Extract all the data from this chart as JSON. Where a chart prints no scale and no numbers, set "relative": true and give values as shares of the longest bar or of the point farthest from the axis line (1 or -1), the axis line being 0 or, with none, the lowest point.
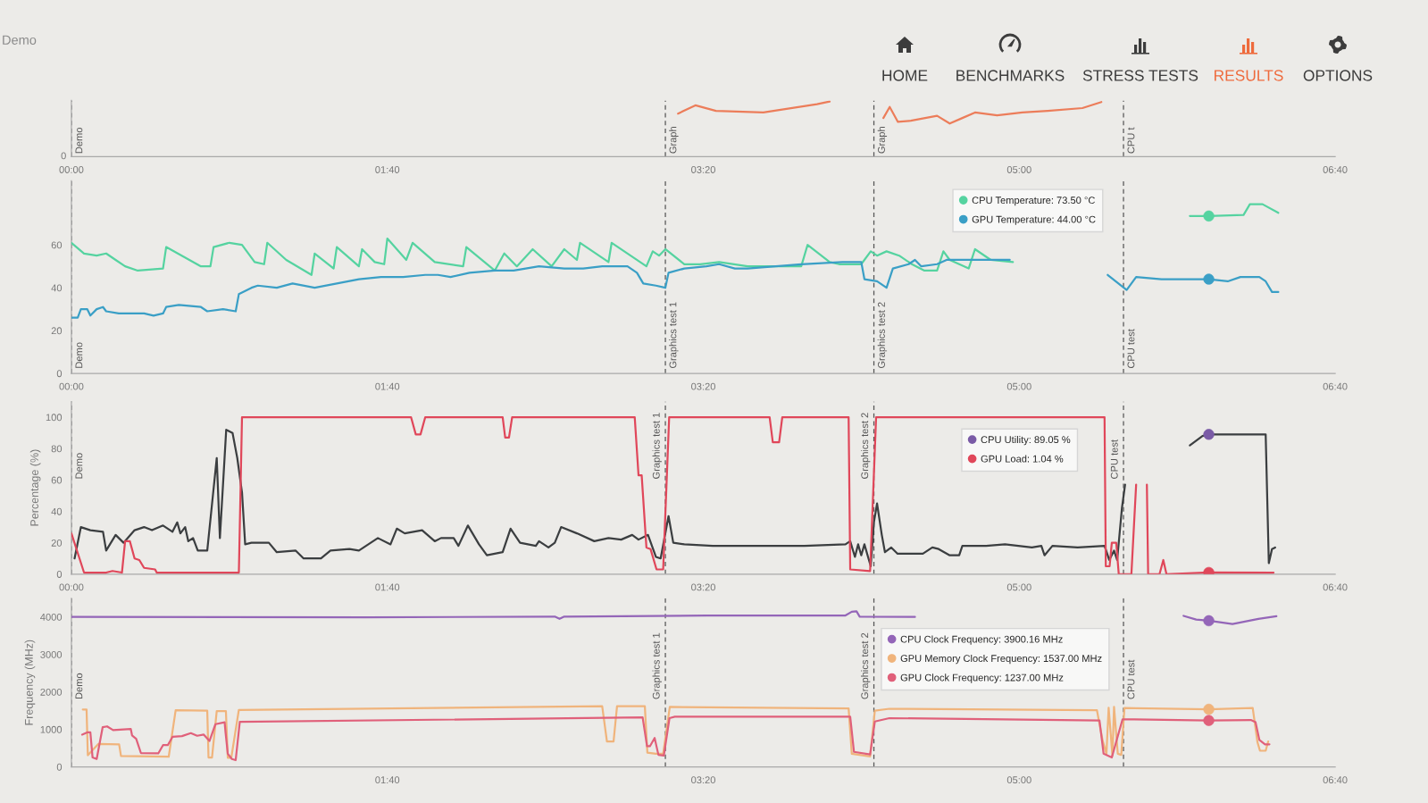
{
  "chart_data": [
    {
      "type": "other",
      "annotations": [
        "Demo",
        "HOME",
        "BENCHMARKS",
        "STRESS TESTS",
        "RESULTS",
        "OPTIONS"
      ],
      "colors": [
        "#8a8a8a",
        "#3c3c3c",
        "#3c3c3c",
        "#3c3c3c",
        "#ee6a3c",
        "#3c3c3c"
      ]
    },
    {
      "type": "line",
      "relative": true,
      "xlim": [
        0,
        400
      ],
      "xticks": [
        {
          "value": 0,
          "label": "00:00"
        },
        {
          "value": 100,
          "label": "01:40"
        },
        {
          "value": 200,
          "label": "03:20"
        },
        {
          "value": 300,
          "label": "05:00"
        },
        {
          "value": 400,
          "label": "06:40"
        }
      ],
      "series": [
        {
          "color": "#ec7d5a",
          "x": [
            192,
            197.5,
            204,
            219,
            236,
            240,
            248,
            257,
            259,
            261.6,
            265.7,
            274,
            278,
            282,
            286,
            293,
            301,
            309,
            320,
            326
          ],
          "values": [
            0.78,
            0.93,
            0.83,
            0.8,
            0.95,
            1,
            null,
            0.7,
            0.9,
            0.63,
            0.65,
            0.74,
            0.6,
            0.7,
            0.8,
            0.75,
            0.8,
            0.83,
            0.88,
            0.99
          ]
        }
      ],
      "ref_lines": [
        {
          "axis": "x",
          "value": 0,
          "label": "Demo",
          "line_style": "dashed",
          "color": "#555555"
        },
        {
          "axis": "x",
          "value": 188,
          "label": "Graph",
          "line_style": "dashed",
          "color": "#555555"
        },
        {
          "axis": "x",
          "value": 254,
          "label": "Graph",
          "line_style": "dashed",
          "color": "#555555"
        },
        {
          "axis": "x",
          "value": 333,
          "label": "CPU t",
          "line_style": "dashed",
          "color": "#555555"
        }
      ],
      "annotations": [
        "0"
      ]
    },
    {
      "type": "line",
      "xlim": [
        0,
        400
      ],
      "xticks": [
        {
          "value": 0,
          "label": "00:00"
        },
        {
          "value": 100,
          "label": "01:40"
        },
        {
          "value": 200,
          "label": "03:20"
        },
        {
          "value": 300,
          "label": "05:00"
        },
        {
          "value": 400,
          "label": "06:40"
        }
      ],
      "ylim": [
        0,
        90
      ],
      "yticks": [
        0,
        20,
        40,
        60
      ],
      "legend": "top right",
      "series": [
        {
          "color": "#55d3a0",
          "x": [
            0,
            4,
            8,
            11,
            14,
            17,
            21,
            29,
            30,
            41,
            44,
            45,
            50,
            54,
            58,
            61,
            62,
            68,
            76,
            77,
            83,
            84,
            91,
            92,
            96,
            99,
            100,
            106,
            108,
            115,
            124,
            125,
            134,
            137,
            141,
            146,
            152,
            156,
            160,
            161,
            170,
            171,
            182,
            184,
            186,
            188,
            194,
            199,
            205,
            214,
            231,
            233,
            240,
            243,
            250,
            253,
            255,
            258,
            262,
            266,
            270,
            274,
            276,
            278,
            284,
            286,
            291,
            298,
            326,
            354,
            360,
            371,
            373,
            377,
            382
          ],
          "values": [
            61,
            56,
            55,
            56,
            53,
            50,
            48,
            49,
            59,
            50,
            50,
            59,
            61,
            60,
            52,
            51,
            61,
            53,
            46,
            56,
            49,
            59,
            50,
            58,
            52,
            51,
            63,
            53,
            61,
            52,
            50,
            59,
            48,
            56,
            50,
            58,
            50,
            58,
            53,
            61,
            52,
            61,
            50,
            57,
            55,
            58,
            51,
            51,
            52,
            50,
            50,
            60,
            52,
            51,
            51,
            57,
            55,
            57,
            55,
            51,
            48,
            48,
            57,
            53,
            49,
            58,
            53,
            52,
            null,
            73.5,
            73.5,
            74,
            79,
            79,
            75
          ]
        },
        {
          "color": "#3a9fc6",
          "x": [
            0,
            2,
            3,
            5,
            6,
            8,
            10,
            11,
            15,
            23,
            26,
            29,
            30,
            34,
            41,
            43,
            48,
            52,
            53,
            57,
            59,
            65,
            70,
            77,
            84,
            91,
            98,
            105,
            112,
            116,
            120,
            126,
            134,
            140,
            148,
            156,
            162,
            168,
            176,
            179,
            181,
            185,
            188,
            189,
            194,
            201,
            205,
            210,
            214,
            231,
            244,
            250,
            251,
            255,
            258,
            260,
            265,
            267,
            269,
            274,
            277,
            282,
            286,
            294,
            297,
            312,
            328,
            334,
            337,
            345,
            360,
            366,
            370,
            376,
            378,
            380,
            382
          ],
          "values": [
            26,
            26,
            30,
            30,
            27,
            30,
            31,
            29,
            28,
            28,
            27,
            28,
            31,
            32,
            31,
            29,
            30,
            29,
            37,
            40,
            41,
            40,
            42,
            40,
            42,
            44,
            45,
            45,
            46,
            46,
            45,
            47,
            48,
            48,
            50,
            49,
            49,
            50,
            50,
            47,
            42,
            41,
            40,
            47,
            49,
            50,
            51,
            49,
            49,
            51,
            52,
            52,
            44,
            43,
            40,
            49,
            51,
            53,
            50,
            51,
            53,
            53,
            53,
            53,
            53,
            null,
            46,
            39,
            45,
            44,
            44,
            43,
            45,
            45,
            43,
            38,
            38
          ]
        },
        {
          "type": "scatter",
          "marker": "circle",
          "name": "CPU Temperature: 73.50 °C",
          "color": "#55d3a0",
          "x": [
            360
          ],
          "values": [
            73.5
          ]
        },
        {
          "type": "scatter",
          "marker": "circle",
          "name": "GPU Temperature: 44.00 °C",
          "color": "#3a9fc6",
          "x": [
            360
          ],
          "values": [
            44
          ]
        }
      ],
      "ref_lines": [
        {
          "axis": "x",
          "value": 0,
          "label": "Demo",
          "line_style": "dashed",
          "color": "#555555"
        },
        {
          "axis": "x",
          "value": 188,
          "label": "Graphics test 1",
          "line_style": "dashed",
          "color": "#555555"
        },
        {
          "axis": "x",
          "value": 254,
          "label": "Graphics test 2",
          "line_style": "dashed",
          "color": "#555555"
        },
        {
          "axis": "x",
          "value": 333,
          "label": "CPU test",
          "line_style": "dashed",
          "color": "#555555"
        }
      ]
    },
    {
      "type": "line",
      "ylabel": "Percentage (%)",
      "xlim": [
        0,
        400
      ],
      "xticks": [
        {
          "value": 0,
          "label": "00:00"
        },
        {
          "value": 100,
          "label": "01:40"
        },
        {
          "value": 200,
          "label": "03:20"
        },
        {
          "value": 300,
          "label": "05:00"
        },
        {
          "value": 400,
          "label": "06:40"
        }
      ],
      "ylim": [
        0,
        110
      ],
      "yticks": [
        0,
        20,
        40,
        60,
        80,
        100
      ],
      "legend": "top right",
      "series": [
        {
          "color": "#3b3e40",
          "x": [
            1,
            3,
            6,
            10,
            11,
            14,
            16.5,
            20,
            23,
            25.5,
            29,
            32,
            33.5,
            34.5,
            36,
            37,
            38.5,
            40,
            43,
            46,
            47,
            49,
            51,
            52.5,
            54,
            55,
            57,
            62.5,
            65,
            71,
            73.5,
            79,
            82,
            88,
            91,
            94,
            97,
            101,
            103,
            105.5,
            111,
            115,
            117,
            121,
            122.5,
            125.5,
            129,
            131.5,
            136.5,
            139,
            142,
            147,
            148,
            151,
            153,
            155,
            160,
            165.5,
            170,
            174,
            177.5,
            179.5,
            182.5,
            185,
            186.5,
            189,
            190.5,
            194,
            203,
            217.5,
            232,
            245,
            246.5,
            248,
            249,
            250,
            251,
            253,
            254,
            255,
            256.5,
            257.5,
            259.5,
            261.5,
            269.5,
            272.5,
            274.5,
            278,
            281,
            282,
            289.5,
            295.5,
            304,
            307,
            308,
            310.5,
            318.5,
            327,
            328.5,
            330,
            331,
            332.5,
            333.5,
            344,
            354,
            356,
            358,
            360,
            369,
            378,
            379,
            380,
            381
          ],
          "values": [
            10,
            30,
            28,
            27,
            15,
            25,
            20,
            28,
            30,
            28,
            31,
            27,
            33,
            26,
            30,
            21,
            23,
            15,
            15,
            74,
            23,
            92,
            90,
            74,
            52,
            19,
            20,
            20,
            14,
            15,
            10,
            10,
            15,
            16,
            15,
            19,
            23,
            19,
            29,
            26,
            28,
            21,
            23,
            23,
            18,
            31,
            19,
            12,
            14,
            29,
            20,
            18,
            21,
            17,
            20,
            30,
            26,
            21,
            23,
            22,
            25,
            22,
            25,
            11,
            10,
            37,
            20,
            19,
            18,
            18,
            18,
            19,
            21,
            11,
            19,
            12,
            19,
            5,
            33,
            45,
            25,
            14,
            17,
            13,
            13,
            17,
            16,
            12,
            12,
            18,
            18,
            19,
            17,
            18,
            12,
            18,
            17,
            18,
            9,
            15,
            9,
            42,
            57,
            null,
            82,
            85,
            88,
            89.05,
            89,
            89,
            7,
            16,
            17
          ]
        },
        {
          "color": "#e0475a",
          "x": [
            0,
            4,
            11,
            13,
            16,
            17,
            18.5,
            20,
            21.5,
            23,
            26.5,
            27,
            53,
            54,
            107.5,
            109,
            110.5,
            112,
            136.5,
            137.3,
            138.5,
            139.5,
            178.3,
            179.5,
            180.5,
            182,
            183.3,
            185.2,
            187.3,
            189.2,
            221,
            222,
            224,
            225,
            246,
            246.5,
            252.8,
            254.7,
            327,
            327.4,
            328.6,
            329.3,
            330.7,
            331.5,
            335.5,
            337,
            339,
            340.4,
            340.8,
            344.4,
            345.6,
            346.6,
            360,
            380.5
          ],
          "values": [
            26,
            1,
            1,
            2,
            1,
            21,
            21,
            10,
            9,
            4,
            3,
            1,
            1,
            100,
            100,
            89,
            89,
            100,
            100,
            87,
            87,
            100,
            100,
            63,
            63,
            17,
            16,
            3,
            3,
            100,
            100,
            84,
            84,
            100,
            100,
            3,
            2,
            100,
            100,
            5,
            5,
            20,
            20,
            0,
            0,
            57,
            null,
            57,
            0,
            0,
            9,
            0,
            1.04,
            1
          ]
        },
        {
          "type": "scatter",
          "marker": "circle",
          "name": "CPU Utility: 89.05 %",
          "color": "#7a5ba6",
          "x": [
            360
          ],
          "values": [
            89.05
          ]
        },
        {
          "type": "scatter",
          "marker": "circle",
          "name": "GPU Load: 1.04 %",
          "color": "#e0475a",
          "x": [
            360
          ],
          "values": [
            1.04
          ]
        }
      ],
      "ref_lines": [
        {
          "axis": "x",
          "value": 0,
          "label": "Demo",
          "line_style": "dashed",
          "color": "#555555"
        },
        {
          "axis": "x",
          "value": 188,
          "label": "Graphics test 1",
          "line_style": "dashed",
          "color": "#555555"
        },
        {
          "axis": "x",
          "value": 254,
          "label": "Graphics test 2",
          "line_style": "dashed",
          "color": "#555555"
        },
        {
          "axis": "x",
          "value": 333,
          "label": "CPU test",
          "line_style": "dashed",
          "color": "#555555"
        }
      ]
    },
    {
      "type": "line",
      "ylabel": "Frequency (MHz)",
      "xlim": [
        0,
        400
      ],
      "xticks": [
        {
          "value": 0,
          "label": null
        },
        {
          "value": 100,
          "label": "01:40"
        },
        {
          "value": 200,
          "label": "03:20"
        },
        {
          "value": 300,
          "label": "05:00"
        },
        {
          "value": 400,
          "label": "06:40"
        }
      ],
      "ylim": [
        0,
        4500
      ],
      "yticks": [
        0,
        1000,
        2000,
        3000,
        4000
      ],
      "legend": "top right",
      "series": [
        {
          "color": "#9466b8",
          "x": [
            0,
            93,
            153,
            154.5,
            156,
            201,
            245,
            247,
            248.5,
            249.5,
            267,
            310,
            352,
            356,
            360,
            367.5,
            375.7,
            381.4
          ],
          "values": [
            4000,
            3990,
            4010,
            3950,
            4010,
            4040,
            4040,
            4140,
            4150,
            4010,
            4000,
            null,
            4030,
            3930,
            3900.16,
            3810,
            3950,
            4020
          ]
        },
        {
          "color": "#f0b47c",
          "x": [
            3.6,
            4.8,
            5.2,
            8.5,
            15.1,
            15.7,
            30.8,
            33,
            43,
            43.4,
            44.5,
            46,
            48.9,
            49.5,
            50.6,
            53,
            168,
            169.5,
            171.6,
            172.7,
            181.5,
            182.3,
            185,
            187.3,
            189.4,
            246,
            247,
            252.8,
            254.3,
            258.9,
            324.6,
            326.4,
            327.6,
            328.3,
            329.5,
            330,
            331.2,
            332.3,
            333.3,
            360,
            373.9,
            375.4,
            376.2,
            378,
            378.8
          ],
          "values": [
            1530,
            1530,
            310,
            610,
            600,
            290,
            270,
            1510,
            1500,
            250,
            250,
            1490,
            1490,
            240,
            240,
            1520,
            1620,
            680,
            680,
            1620,
            1620,
            380,
            350,
            350,
            1600,
            1560,
            350,
            280,
            1500,
            1550,
            1510,
            700,
            350,
            1580,
            290,
            1600,
            350,
            320,
            1570,
            1537,
            1570,
            660,
            430,
            430,
            680
          ]
        },
        {
          "color": "#e0607a",
          "x": [
            3.4,
            5,
            6,
            6.7,
            8,
            9.9,
            11.3,
            13.2,
            18.8,
            19.2,
            20.5,
            22,
            27.5,
            29,
            30.5,
            32,
            35,
            37.8,
            39.8,
            41.9,
            43.7,
            45.6,
            48.5,
            48.8,
            49.5,
            50.8,
            52,
            53.3,
            180.8,
            182.2,
            183.1,
            184.6,
            185.8,
            187.5,
            189.3,
            191,
            246.5,
            247.7,
            252.8,
            254.3,
            258.9,
            325.4,
            326.7,
            329.3,
            332.7,
            360,
            373.3,
            374.8,
            376,
            377.8,
            379.2
          ],
          "values": [
            860,
            920,
            920,
            250,
            210,
            1060,
            1080,
            980,
            1010,
            840,
            750,
            370,
            360,
            580,
            580,
            800,
            820,
            900,
            830,
            860,
            690,
            1140,
            1190,
            910,
            350,
            210,
            180,
            1200,
            1320,
            550,
            550,
            770,
            320,
            300,
            1300,
            1340,
            1340,
            400,
            330,
            1210,
            1300,
            1240,
            350,
            250,
            1270,
            1237,
            1250,
            1190,
            720,
            600,
            600
          ]
        },
        {
          "type": "scatter",
          "marker": "circle",
          "name": "CPU Clock Frequency: 3900.16 MHz",
          "color": "#9466b8",
          "x": [
            360
          ],
          "values": [
            3900.16
          ]
        },
        {
          "type": "scatter",
          "marker": "circle",
          "name": "GPU Memory Clock Frequency: 1537.00 MHz",
          "color": "#f0b47c",
          "x": [
            360
          ],
          "values": [
            1537
          ]
        },
        {
          "type": "scatter",
          "marker": "circle",
          "name": "GPU Clock Frequency: 1237.00 MHz",
          "color": "#e0607a",
          "x": [
            360
          ],
          "values": [
            1237
          ]
        }
      ],
      "ref_lines": [
        {
          "axis": "x",
          "value": 0,
          "label": "Demo",
          "line_style": "dashed",
          "color": "#555555"
        },
        {
          "axis": "x",
          "value": 188,
          "label": "Graphics test 1",
          "line_style": "dashed",
          "color": "#555555"
        },
        {
          "axis": "x",
          "value": 254,
          "label": "Graphics test 2",
          "line_style": "dashed",
          "color": "#555555"
        },
        {
          "axis": "x",
          "value": 333,
          "label": "CPU test",
          "line_style": "dashed",
          "color": "#555555"
        }
      ]
    }
  ]
}
